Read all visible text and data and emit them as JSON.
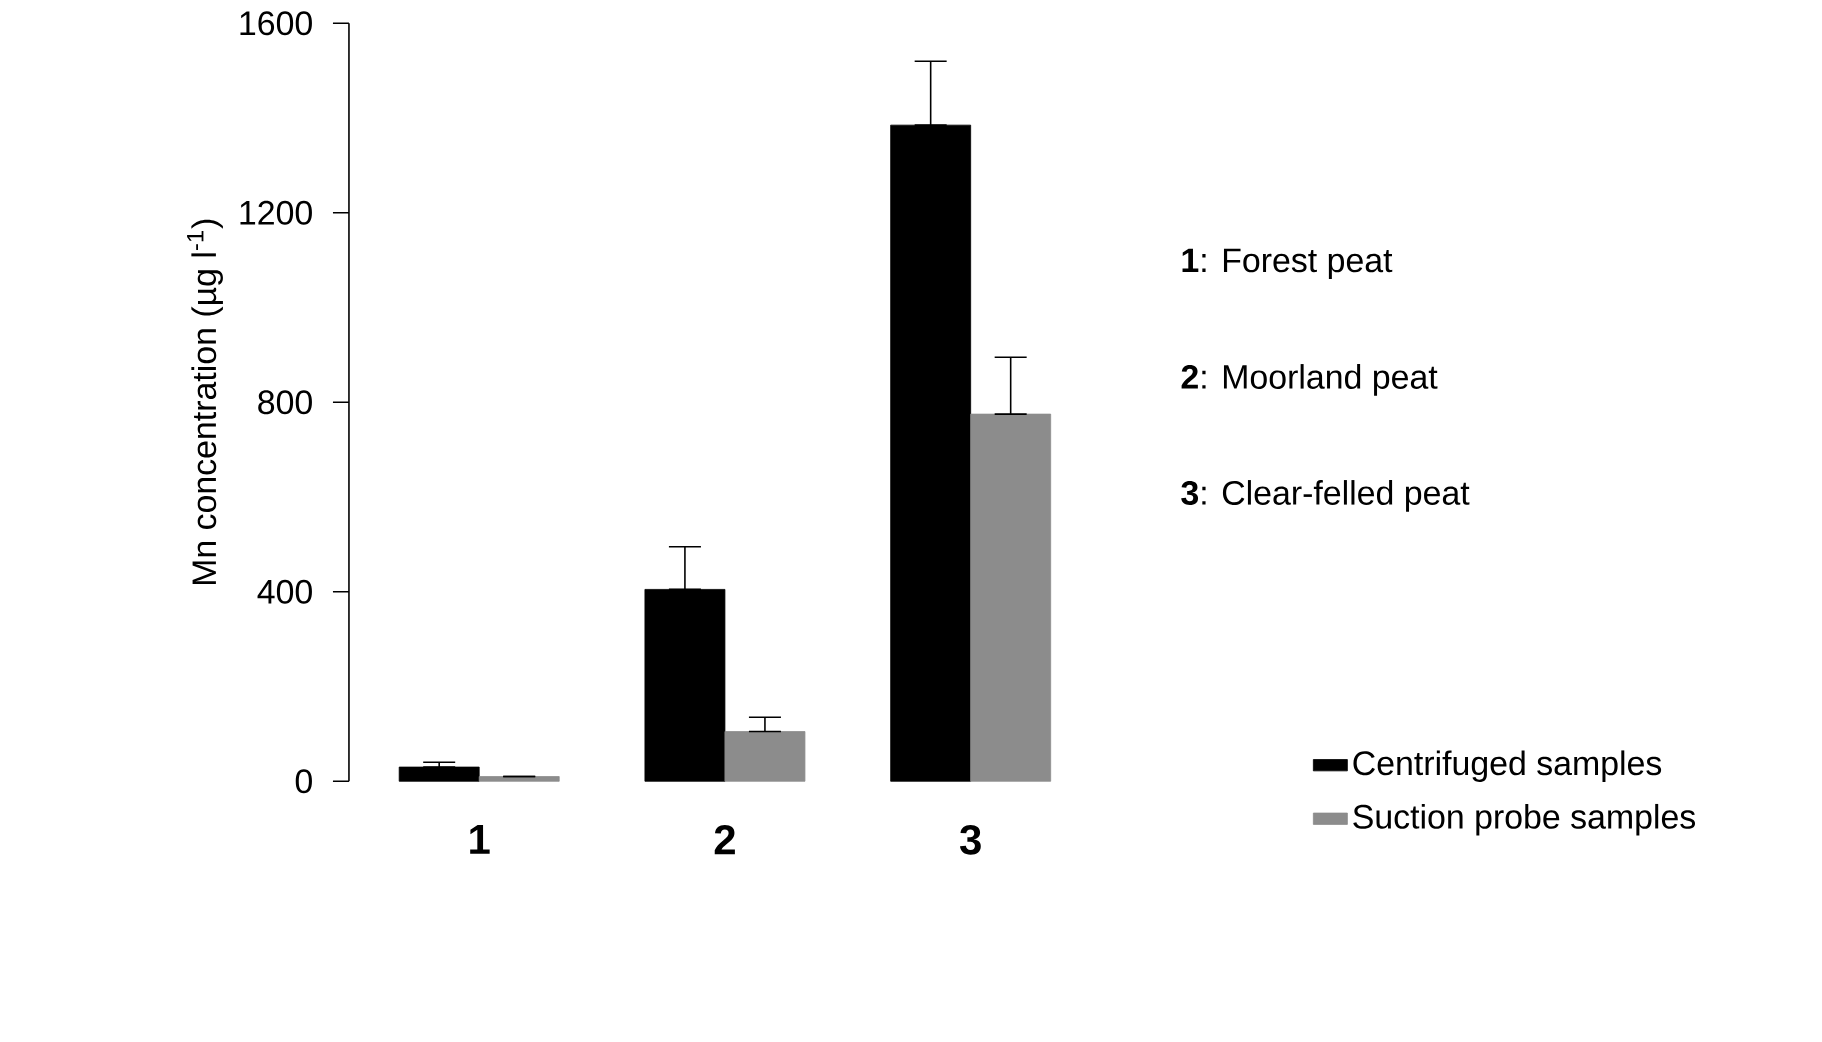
{
  "chart_data": {
    "type": "bar",
    "ylabel": "Mn concentration (µg l$^{-1}$)",
    "categories": [
      "1",
      "2",
      "3"
    ],
    "series": [
      {
        "name": "Centrifuged samples",
        "color": "#000000",
        "values": [
          30,
          405,
          1385
        ],
        "errors": [
          [
            30,
            40
          ],
          [
            405,
            495
          ],
          [
            1385,
            1520
          ]
        ]
      },
      {
        "name": "Suction probe samples",
        "color": "#8c8c8c",
        "values": [
          10,
          105,
          775
        ],
        "errors": [
          null,
          [
            105,
            135
          ],
          [
            775,
            895
          ]
        ]
      }
    ],
    "ylim": [
      0,
      1600
    ],
    "yticks": [
      0,
      400,
      800,
      1200,
      1600
    ],
    "grid": false,
    "legend": "right",
    "annotations": [
      "**1**: Forest peat",
      "**2**: Moorland peat",
      "**3**: Clear-felled peat"
    ]
  }
}
